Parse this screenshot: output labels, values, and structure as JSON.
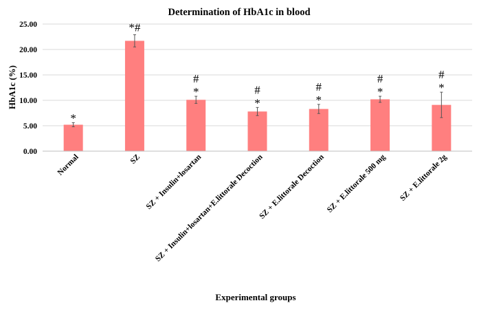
{
  "chart_data": {
    "type": "bar",
    "title": "Determination of HbA1c in blood",
    "xlabel": "Experimental groups",
    "ylabel": "HbA1c (%)",
    "ylim": [
      0,
      25
    ],
    "yticks": [
      "0.00",
      "5.00",
      "10.00",
      "15.00",
      "20.00",
      "25.00"
    ],
    "grid": true,
    "bar_color": "#FF7F7F",
    "categories": [
      "Normal",
      "SZ",
      "SZ + Insulin+losartan",
      "SZ + Insulin+losartan+E.littorale Decoction",
      "SZ + E.littorale Decoction",
      "SZ + E.littorale 500 mg",
      "SZ + E.littorale 2g"
    ],
    "values": [
      5.2,
      21.7,
      10.1,
      7.8,
      8.3,
      10.2,
      9.1
    ],
    "error": [
      0.4,
      1.2,
      0.7,
      0.8,
      0.9,
      0.6,
      2.5
    ],
    "annotations": [
      "*",
      "*#",
      "#\n*",
      "#\n*",
      "#\n*",
      "#\n*",
      "#\n*"
    ]
  }
}
